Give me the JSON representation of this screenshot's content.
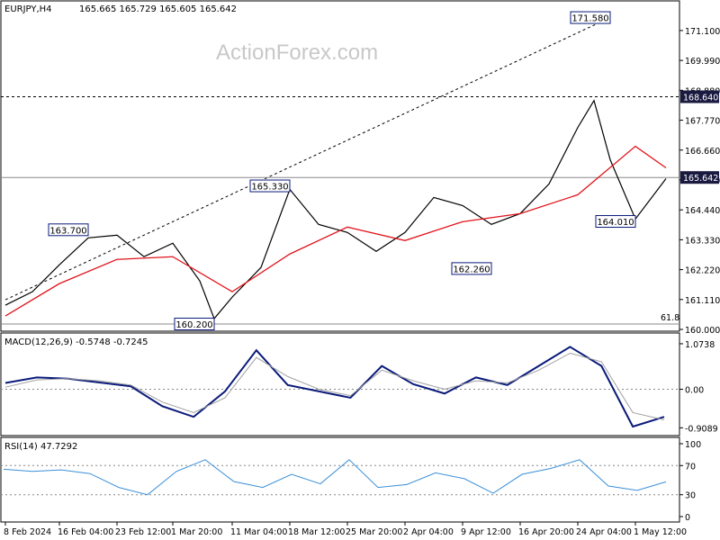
{
  "header": {
    "symbol": "EURJPY,H4",
    "ohlc": "165.665 165.729 165.605 165.642"
  },
  "watermark": "ActionForex.com",
  "colors": {
    "price": "#000000",
    "ma": "#e0141b",
    "macd_line": "#0a1a7a",
    "signal_line": "#a0a0a0",
    "rsi_line": "#3a8fd8",
    "price_tag_bg": "#1a1a40",
    "level_label_border": "#0a1a7a"
  },
  "chart_data": [
    {
      "type": "line",
      "panel": "price",
      "ylim": [
        160.0,
        172.1
      ],
      "y_ticks": [
        "171.100",
        "169.990",
        "168.880",
        "167.770",
        "166.660",
        "165.550",
        "164.440",
        "163.330",
        "162.220",
        "161.110",
        "160.000"
      ],
      "x_labels": [
        "8 Feb 2024",
        "16 Feb 04:00",
        "23 Feb 12:00",
        "1 Mar 20:00",
        "11 Mar 04:00",
        "18 Mar 12:00",
        "25 Mar 20:00",
        "2 Apr 04:00",
        "9 Apr 12:00",
        "16 Apr 20:00",
        "24 Apr 04:00",
        "1 May 12:00"
      ],
      "series": [
        {
          "x": [
            "8 Feb 2024",
            "12 Feb",
            "16 Feb 04:00",
            "20 Feb",
            "23 Feb 12:00",
            "27 Feb",
            "1 Mar 20:00",
            "5 Mar",
            "8 Mar",
            "11 Mar 04:00",
            "14 Mar",
            "18 Mar 12:00",
            "21 Mar",
            "25 Mar 20:00",
            "28 Mar",
            "2 Apr 04:00",
            "5 Apr",
            "9 Apr 12:00",
            "12 Apr",
            "16 Apr 20:00",
            "19 Apr",
            "24 Apr 04:00",
            "26 Apr",
            "29 Apr",
            "1 May 12:00",
            "3 May"
          ],
          "values": [
            160.9,
            161.4,
            162.4,
            163.4,
            163.5,
            162.7,
            163.2,
            161.8,
            160.4,
            161.2,
            162.3,
            165.2,
            163.9,
            163.6,
            162.9,
            163.6,
            164.9,
            164.6,
            163.9,
            164.3,
            165.4,
            167.5,
            168.5,
            166.3,
            164.1,
            165.6
          ]
        },
        {
          "x": [
            "8 Feb 2024",
            "16 Feb 04:00",
            "23 Feb 12:00",
            "1 Mar 20:00",
            "11 Mar 04:00",
            "18 Mar 12:00",
            "25 Mar 20:00",
            "2 Apr 04:00",
            "9 Apr 12:00",
            "16 Apr 20:00",
            "24 Apr 04:00",
            "1 May 12:00",
            "3 May"
          ],
          "values": [
            160.5,
            161.7,
            162.6,
            162.7,
            161.4,
            162.8,
            163.8,
            163.3,
            164.0,
            164.3,
            165.0,
            166.8,
            166.0
          ]
        }
      ],
      "current_price": "165.642",
      "horizontal_levels": [
        {
          "value": 168.64,
          "label": "168.640",
          "style": "dotted"
        },
        {
          "value": 165.642,
          "label": "165.642",
          "style": "solid"
        },
        {
          "value": 160.2,
          "label": "61.8",
          "style": "solid"
        }
      ],
      "annotations": [
        {
          "label": "171.580",
          "x": "29 Apr",
          "y": 171.58
        },
        {
          "label": "165.330",
          "x": "18 Mar 12:00",
          "y": 165.33
        },
        {
          "label": "163.700",
          "x": "20 Feb",
          "y": 163.7
        },
        {
          "label": "160.200",
          "x": "8 Mar",
          "y": 160.2
        },
        {
          "label": "162.260",
          "x": "12 Apr",
          "y": 162.26
        },
        {
          "label": "164.010",
          "x": "1 May 12:00",
          "y": 164.01
        }
      ],
      "trendline": {
        "from": {
          "x": "8 Feb 2024",
          "y": 161.1
        },
        "to": {
          "x": "29 Apr",
          "y": 171.58
        }
      }
    },
    {
      "type": "line",
      "panel": "macd",
      "title": "MACD(12,26,9) -0.5748 -0.7245",
      "ylim": [
        -1.05,
        1.2
      ],
      "y_ticks": [
        "1.0738",
        "0.00",
        "-0.9089"
      ],
      "series": [
        {
          "values": [
            0.15,
            0.28,
            0.25,
            0.16,
            0.07,
            -0.4,
            -0.65,
            -0.05,
            0.92,
            0.1,
            -0.05,
            -0.2,
            0.55,
            0.12,
            -0.1,
            0.28,
            0.1,
            0.55,
            1.0,
            0.55,
            -0.88,
            -0.65
          ]
        },
        {
          "values": [
            0.05,
            0.22,
            0.25,
            0.2,
            0.1,
            -0.3,
            -0.55,
            -0.2,
            0.75,
            0.3,
            0.0,
            -0.15,
            0.45,
            0.2,
            0.0,
            0.2,
            0.15,
            0.45,
            0.85,
            0.65,
            -0.55,
            -0.72
          ]
        }
      ]
    },
    {
      "type": "line",
      "panel": "rsi",
      "title": "RSI(14) 47.7292",
      "ylim": [
        0,
        100
      ],
      "y_ticks": [
        "100",
        "70",
        "30",
        "0"
      ],
      "series": [
        {
          "values": [
            65,
            62,
            64,
            59,
            40,
            30,
            62,
            78,
            48,
            40,
            58,
            45,
            78,
            40,
            44,
            60,
            52,
            32,
            58,
            66,
            78,
            42,
            36,
            47.7
          ]
        }
      ]
    }
  ],
  "bottom_axis": {
    "labels": [
      "8 Feb 2024",
      "16 Feb 04:00",
      "23 Feb 12:00",
      "1 Mar 20:00",
      "11 Mar 04:00",
      "18 Mar 12:00",
      "25 Mar 20:00",
      "2 Apr 04:00",
      "9 Apr 12:00",
      "16 Apr 20:00",
      "24 Apr 04:00",
      "1 May 12:00"
    ]
  }
}
